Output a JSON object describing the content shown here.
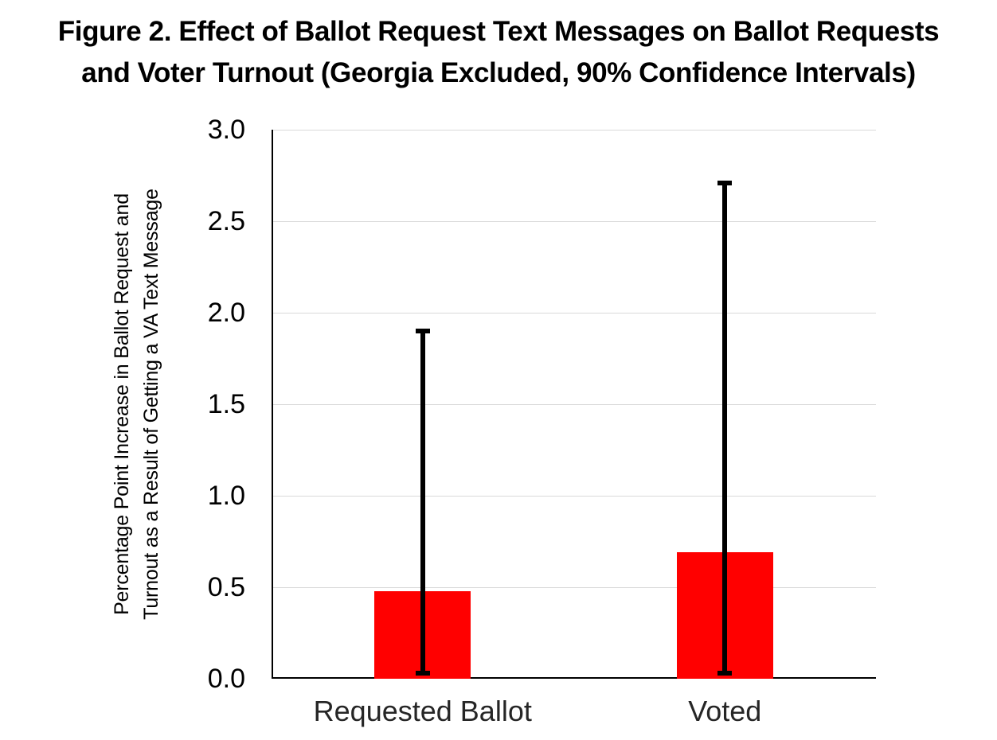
{
  "figure_title": {
    "line1": "Figure 2. Effect of Ballot Request Text Messages on Ballot Requests",
    "line2": "and Voter Turnout (Georgia Excluded, 90% Confidence Intervals)"
  },
  "chart_data": {
    "type": "bar",
    "title": "Figure 2. Effect of Ballot Request Text Messages on Ballot Requests and Voter Turnout (Georgia Excluded, 90% Confidence Intervals)",
    "categories": [
      "Requested Ballot",
      "Voted"
    ],
    "values": [
      0.48,
      0.69
    ],
    "error_bars": {
      "lower": [
        0.03,
        0.03
      ],
      "upper": [
        1.9,
        2.71
      ]
    },
    "ylabel_lines": [
      "Percentage Point Increase in Ballot Request and",
      "Turnout as a Result of Getting a VA Text Message"
    ],
    "ylabel": "Percentage Point Increase in Ballot Request and Turnout as a Result of Getting a VA Text Message",
    "xlabel": "",
    "ylim": [
      0.0,
      3.0
    ],
    "yticks": [
      "0.0",
      "0.5",
      "1.0",
      "1.5",
      "2.0",
      "2.5",
      "3.0"
    ],
    "ytick_values": [
      0.0,
      0.5,
      1.0,
      1.5,
      2.0,
      2.5,
      3.0
    ],
    "grid": true,
    "legend": false,
    "bar_color": "#FF0000",
    "error_bar_color": "#000000",
    "gridline_color": "#D9D9D9",
    "axis_color": "#000000",
    "text_color": "#000000"
  }
}
